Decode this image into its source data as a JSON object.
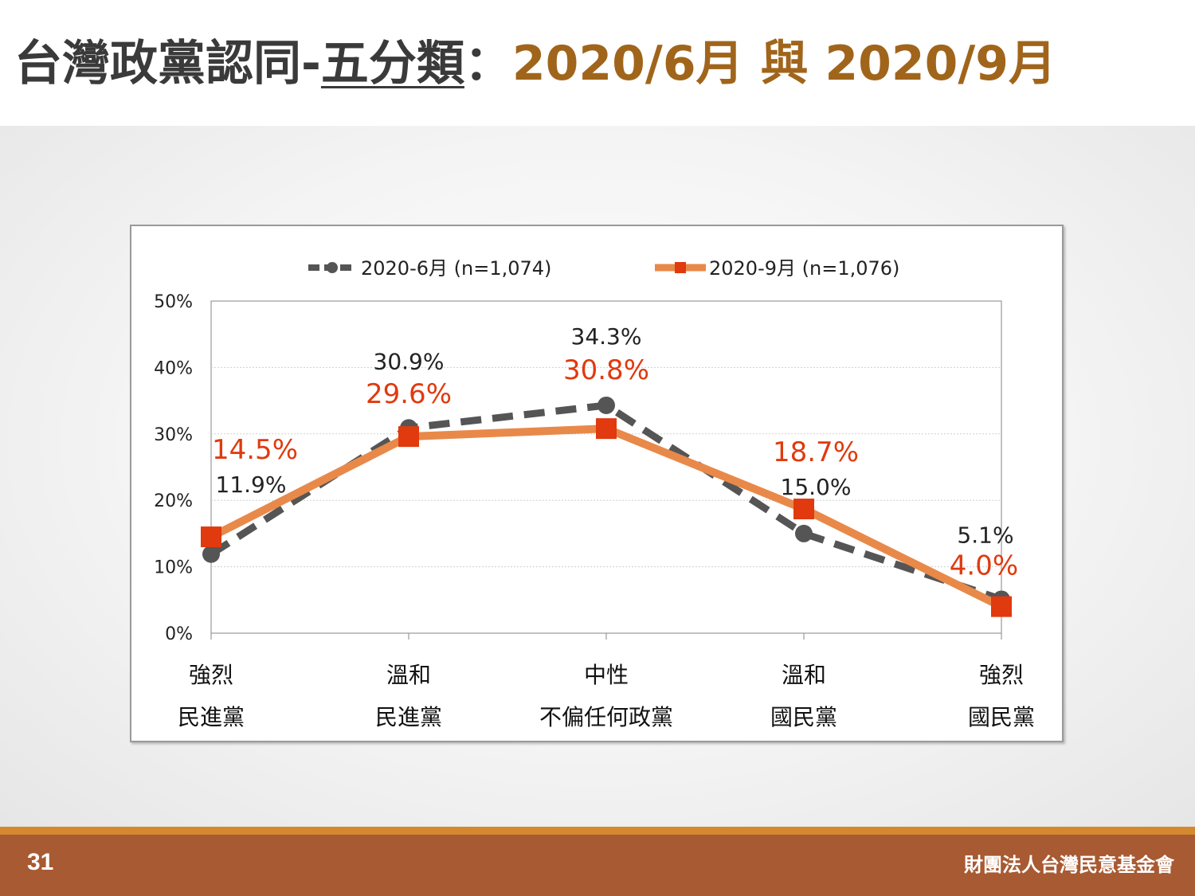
{
  "slide": {
    "title_part1": "台灣政黨認同-",
    "title_part2": "五分類",
    "title_part3": "：",
    "title_part4": "2020/6月 與 2020/9月",
    "page_number": "31",
    "organization": "財團法人台灣民意基金會"
  },
  "colors": {
    "june_series": "#555555",
    "sept_series": "#e8894a",
    "sept_marker": "#e03a0e",
    "sept_label": "#e03a0e",
    "title_accent": "#a0651b",
    "footer": "#a85a32"
  },
  "chart_data": {
    "type": "line",
    "title": "",
    "xlabel": "",
    "ylabel": "",
    "ylim": [
      0,
      50
    ],
    "y_ticks": [
      "0%",
      "10%",
      "20%",
      "30%",
      "40%",
      "50%"
    ],
    "categories": [
      [
        "強烈",
        "民進黨"
      ],
      [
        "溫和",
        "民進黨"
      ],
      [
        "中性",
        "不偏任何政黨"
      ],
      [
        "溫和",
        "國民黨"
      ],
      [
        "強烈",
        "國民黨"
      ]
    ],
    "grid": true,
    "legend_position": "top",
    "series": [
      {
        "name": "2020-6月 (n=1,074)",
        "values": [
          11.9,
          30.9,
          34.3,
          15.0,
          5.1
        ],
        "labels": [
          "11.9%",
          "30.9%",
          "34.3%",
          "15.0%",
          "5.1%"
        ],
        "style": "dashed-circle"
      },
      {
        "name": "2020-9月 (n=1,076)",
        "values": [
          14.5,
          29.6,
          30.8,
          18.7,
          4.0
        ],
        "labels": [
          "14.5%",
          "29.6%",
          "30.8%",
          "18.7%",
          "4.0%"
        ],
        "style": "solid-square"
      }
    ]
  }
}
